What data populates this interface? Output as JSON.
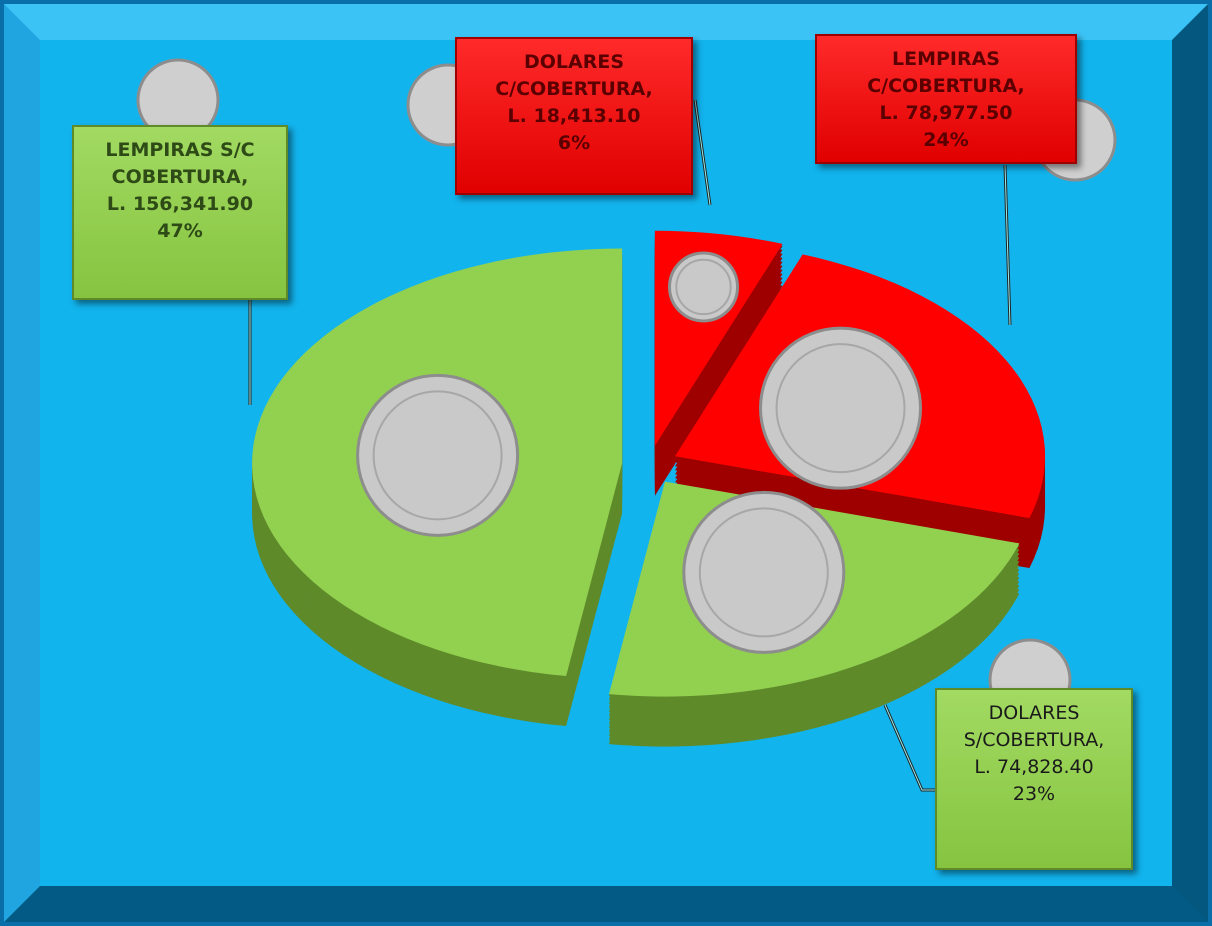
{
  "chart_data": {
    "type": "pie",
    "categories": [
      "DOLARES C/COBERTURA,",
      "LEMPIRAS C/COBERTURA,",
      "DOLARES S/COBERTURA,",
      "LEMPIRAS S/C COBERTURA,"
    ],
    "values": [
      18413.1,
      78977.5,
      74828.4,
      156341.9
    ],
    "value_labels": [
      "L. 18,413.10",
      "L. 78,977.50",
      "L. 74,828.40",
      "L. 156,341.90"
    ],
    "percent_labels": [
      "6%",
      "24%",
      "23%",
      "47%"
    ],
    "colors": [
      "#ff0000",
      "#ff0000",
      "#92d050",
      "#92d050"
    ]
  }
}
